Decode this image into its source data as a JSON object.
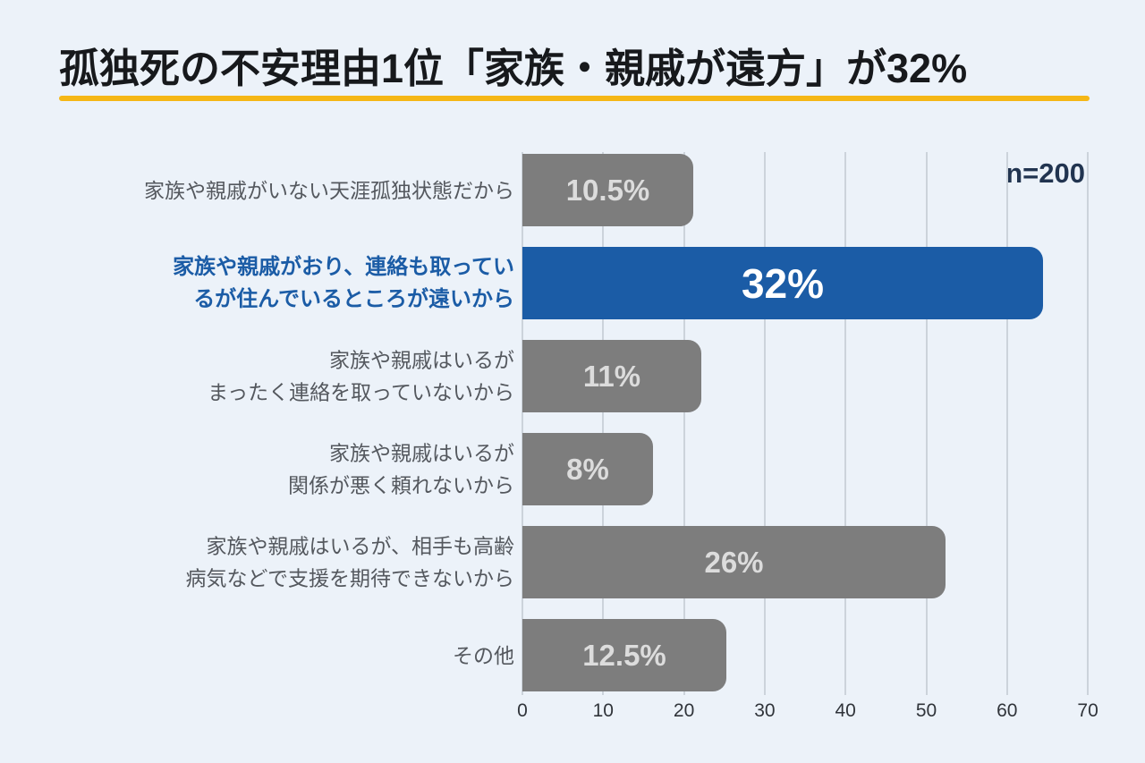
{
  "title": "孤独死の不安理由1位「家族・親戚が遠方」が32%",
  "sample_size_label": "n=200",
  "colors": {
    "background": "#ecf2f9",
    "title_text": "#17191c",
    "title_underline": "#f5b716",
    "bar_default": "#7d7d7d",
    "bar_highlight": "#1b5ca6",
    "value_text_default": "#dcdcdc",
    "value_text_highlight": "#ffffff",
    "category_text": "#54585e",
    "category_text_highlight": "#1b5ca6",
    "gridline": "#ccd3db",
    "sample_size_text": "#213450"
  },
  "chart_data": {
    "type": "bar",
    "orientation": "horizontal",
    "title": "孤独死の不安理由1位「家族・親戚が遠方」が32%",
    "sample_size": "n=200",
    "categories": [
      "家族や親戚がいない天涯孤独状態だから",
      "家族や親戚がおり、連絡も取っているが住んでいるところが遠いから",
      "家族や親戚はいるが まったく連絡を取っていないから",
      "家族や親戚はいるが 関係が悪く頼れないから",
      "家族や親戚はいるが、相手も高齢 病気などで支援を期待できないから",
      "その他"
    ],
    "label_lines": [
      [
        "家族や親戚がいない天涯孤独状態だから"
      ],
      [
        "家族や親戚がおり、連絡も取ってい",
        "るが住んでいるところが遠いから"
      ],
      [
        "家族や親戚はいるが",
        "まったく連絡を取っていないから"
      ],
      [
        "家族や親戚はいるが",
        "関係が悪く頼れないから"
      ],
      [
        "家族や親戚はいるが、相手も高齢",
        "病気などで支援を期待できないから"
      ],
      [
        "その他"
      ]
    ],
    "values": [
      10.5,
      32,
      11,
      8,
      26,
      12.5
    ],
    "value_labels": [
      "10.5%",
      "32%",
      "11%",
      "8%",
      "26%",
      "12.5%"
    ],
    "highlight_index": 1,
    "x_ticks": [
      0,
      10,
      20,
      30,
      40,
      50,
      60,
      70
    ],
    "xlim": [
      0,
      70
    ],
    "xlabel": "",
    "ylabel": "",
    "grid": "vertical",
    "legend": "none"
  }
}
